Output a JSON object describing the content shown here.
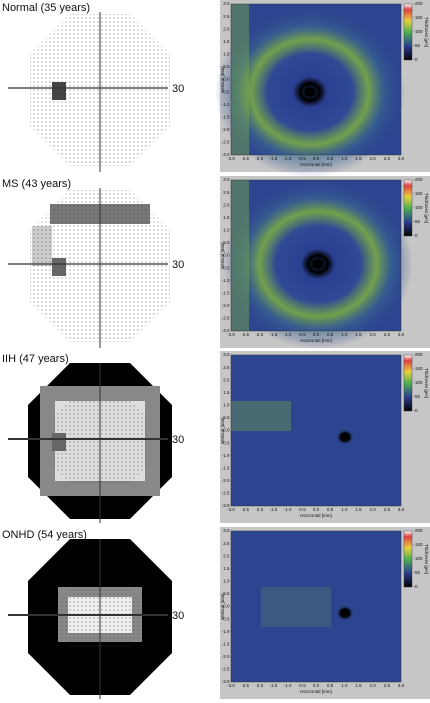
{
  "panels": [
    {
      "label": "Normal (35 years)",
      "field_scale": "30"
    },
    {
      "label": "MS (43 years)",
      "field_scale": "30"
    },
    {
      "label": "IIH (47 years)",
      "field_scale": "30"
    },
    {
      "label": "ONHD (54 years)",
      "field_scale": "30"
    }
  ],
  "axes": {
    "x_label": "Horizontal [mm]",
    "y_label": "Vertical [mm]",
    "ticks": [
      "-3.0",
      "-2.5",
      "-2.0",
      "-1.5",
      "-1.0",
      "-0.5",
      "0.0",
      "0.5",
      "1.0",
      "1.5",
      "2.0",
      "2.5",
      "3.0"
    ]
  },
  "colorbar": {
    "label": "Thickness [µm]",
    "ticks": [
      "-200",
      "-150",
      "-100",
      "-50",
      "-0"
    ]
  }
}
